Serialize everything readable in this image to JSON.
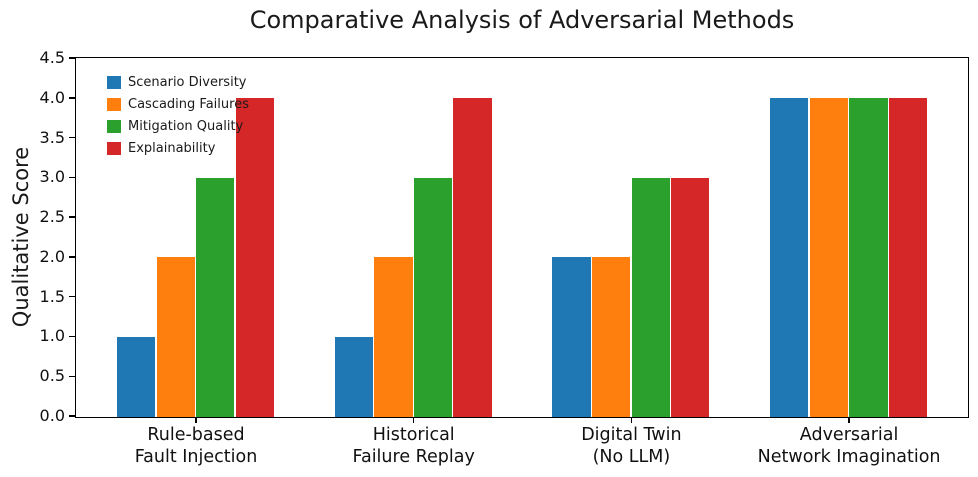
{
  "chart_data": {
    "type": "bar",
    "title": "Comparative Analysis of Adversarial Methods",
    "xlabel": "",
    "ylabel": "Qualitative Score",
    "categories": [
      "Rule-based\nFault Injection",
      "Historical\nFailure Replay",
      "Digital Twin\n(No LLM)",
      "Adversarial\nNetwork Imagination"
    ],
    "series": [
      {
        "name": "Scenario Diversity",
        "color": "#1f77b4",
        "values": [
          1,
          1,
          2,
          4
        ]
      },
      {
        "name": "Cascading Failures",
        "color": "#ff7f0e",
        "values": [
          2,
          2,
          2,
          4
        ]
      },
      {
        "name": "Mitigation Quality",
        "color": "#2ca02c",
        "values": [
          3,
          3,
          3,
          4
        ]
      },
      {
        "name": "Explainability",
        "color": "#d62728",
        "values": [
          4,
          4,
          3,
          4
        ]
      }
    ],
    "ylim": [
      0,
      4.5
    ],
    "yticks": [
      0.0,
      0.5,
      1.0,
      1.5,
      2.0,
      2.5,
      3.0,
      3.5,
      4.0,
      4.5
    ],
    "ytick_labels": [
      "0.0",
      "0.5",
      "1.0",
      "1.5",
      "2.0",
      "2.5",
      "3.0",
      "3.5",
      "4.0",
      "4.5"
    ],
    "grid": false,
    "legend_position": "upper-left",
    "legend_frame": false
  }
}
